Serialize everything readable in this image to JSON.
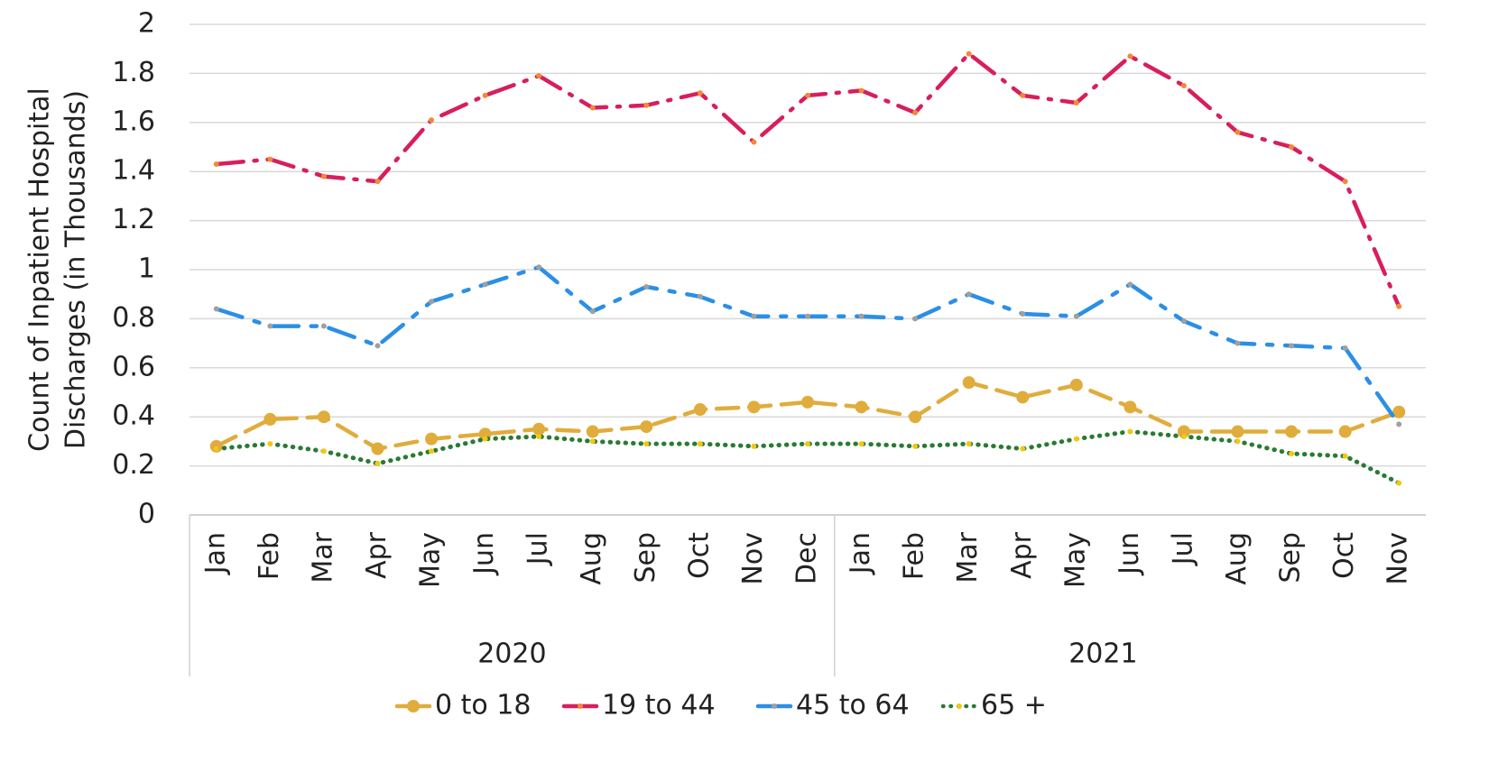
{
  "chart_data": {
    "type": "line",
    "y_label_lines": [
      "Count of Inpatient Hospital",
      "Discharges (in Thousands)"
    ],
    "category_groups": [
      {
        "name": "2020",
        "categories": [
          "Jan",
          "Feb",
          "Mar",
          "Apr",
          "May",
          "Jun",
          "Jul",
          "Aug",
          "Sep",
          "Oct",
          "Nov",
          "Dec"
        ]
      },
      {
        "name": "2021",
        "categories": [
          "Jan",
          "Feb",
          "Mar",
          "Apr",
          "May",
          "Jun",
          "Jul",
          "Aug",
          "Sep",
          "Oct",
          "Nov"
        ]
      }
    ],
    "ylim": [
      0,
      2
    ],
    "yticks": [
      0,
      0.2,
      0.4,
      0.6,
      0.8,
      1,
      1.2,
      1.4,
      1.6,
      1.8,
      2
    ],
    "grid": true,
    "legend": "bottom",
    "series": [
      {
        "name": "0 to 18",
        "color": "#e0ac3c",
        "marker_color": "#e0ac3c",
        "line_style": "dashed",
        "marker": "large",
        "values": [
          0.28,
          0.39,
          0.4,
          0.27,
          0.31,
          0.33,
          0.35,
          0.34,
          0.36,
          0.43,
          0.44,
          0.46,
          0.44,
          0.4,
          0.54,
          0.48,
          0.53,
          0.44,
          0.34,
          0.34,
          0.34,
          0.34,
          0.42
        ]
      },
      {
        "name": "19 to 44",
        "color": "#d81e5b",
        "marker_color": "#f08a3a",
        "line_style": "dash-dot",
        "marker": "small",
        "values": [
          1.43,
          1.45,
          1.38,
          1.36,
          1.61,
          1.71,
          1.79,
          1.66,
          1.67,
          1.72,
          1.52,
          1.71,
          1.73,
          1.64,
          1.88,
          1.71,
          1.68,
          1.87,
          1.75,
          1.56,
          1.5,
          1.36,
          0.85
        ]
      },
      {
        "name": "45 to 64",
        "color": "#2b8fe6",
        "marker_color": "#a0a0a0",
        "line_style": "long-dash-dot",
        "marker": "small",
        "values": [
          0.84,
          0.77,
          0.77,
          0.69,
          0.87,
          0.94,
          1.01,
          0.83,
          0.93,
          0.89,
          0.81,
          0.81,
          0.81,
          0.8,
          0.9,
          0.82,
          0.81,
          0.94,
          0.79,
          0.7,
          0.69,
          0.68,
          0.37
        ]
      },
      {
        "name": "65 +",
        "color": "#2a7a34",
        "marker_color": "#f2c80f",
        "line_style": "dotted",
        "marker": "small",
        "values": [
          0.27,
          0.29,
          0.26,
          0.21,
          0.26,
          0.31,
          0.32,
          0.3,
          0.29,
          0.29,
          0.28,
          0.29,
          0.29,
          0.28,
          0.29,
          0.27,
          0.31,
          0.34,
          0.32,
          0.3,
          0.25,
          0.24,
          0.13
        ]
      }
    ]
  }
}
